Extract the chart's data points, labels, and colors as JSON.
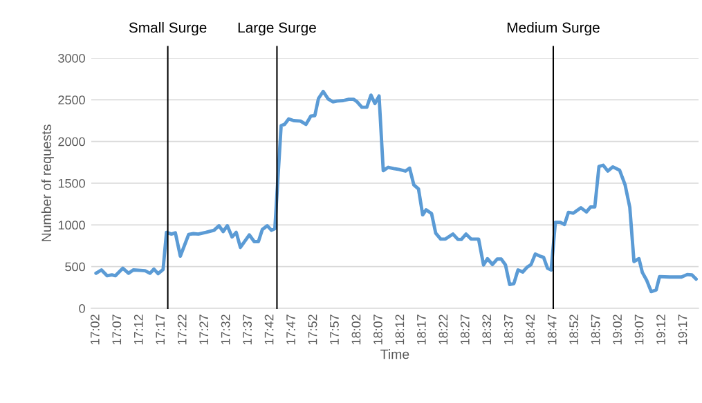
{
  "chart_data": {
    "type": "line",
    "xlabel": "Time",
    "ylabel": "Number of requests",
    "series": [
      {
        "color": "#5b9bd5",
        "x": [
          17.033,
          17.054,
          17.076,
          17.094,
          17.107,
          17.136,
          17.158,
          17.176,
          17.203,
          17.221,
          17.24,
          17.255,
          17.271,
          17.29,
          17.303,
          17.322,
          17.337,
          17.356,
          17.388,
          17.406,
          17.425,
          17.454,
          17.485,
          17.504,
          17.52,
          17.536,
          17.554,
          17.57,
          17.586,
          17.62,
          17.639,
          17.655,
          17.67,
          17.689,
          17.705,
          17.718,
          17.742,
          17.755,
          17.771,
          17.79,
          17.816,
          17.837,
          17.856,
          17.871,
          17.885,
          17.903,
          17.922,
          17.94,
          17.956,
          17.98,
          18.001,
          18.02,
          18.033,
          18.051,
          18.07,
          18.086,
          18.101,
          18.117,
          18.133,
          18.152,
          18.173,
          18.194,
          18.218,
          18.234,
          18.25,
          18.268,
          18.284,
          18.297,
          18.318,
          18.334,
          18.353,
          18.371,
          18.4,
          18.419,
          18.432,
          18.45,
          18.469,
          18.498,
          18.517,
          18.532,
          18.551,
          18.569,
          18.585,
          18.601,
          18.617,
          18.633,
          18.649,
          18.667,
          18.683,
          18.699,
          18.715,
          18.733,
          18.747,
          18.762,
          18.776,
          18.792,
          18.811,
          18.827,
          18.842,
          18.861,
          18.874,
          18.89,
          18.911,
          18.927,
          18.943,
          18.959,
          18.975,
          18.993,
          19.012,
          19.038,
          19.059,
          19.077,
          19.093,
          19.112,
          19.125,
          19.141,
          19.159,
          19.178,
          19.191,
          19.23,
          19.275,
          19.297,
          19.315,
          19.331
        ],
        "values": [
          420,
          460,
          390,
          400,
          390,
          480,
          420,
          460,
          455,
          450,
          420,
          470,
          415,
          465,
          910,
          890,
          905,
          625,
          885,
          895,
          890,
          910,
          935,
          990,
          920,
          990,
          855,
          910,
          730,
          880,
          800,
          800,
          945,
          990,
          935,
          955,
          2190,
          2205,
          2270,
          2250,
          2245,
          2205,
          2305,
          2310,
          2515,
          2600,
          2510,
          2475,
          2485,
          2490,
          2505,
          2505,
          2475,
          2410,
          2410,
          2555,
          2455,
          2545,
          1650,
          1690,
          1675,
          1665,
          1645,
          1680,
          1480,
          1430,
          1120,
          1180,
          1135,
          900,
          830,
          830,
          890,
          825,
          825,
          890,
          830,
          830,
          520,
          595,
          525,
          590,
          590,
          520,
          285,
          295,
          460,
          435,
          490,
          525,
          650,
          625,
          610,
          480,
          460,
          1030,
          1030,
          1005,
          1150,
          1140,
          1170,
          1205,
          1155,
          1215,
          1215,
          1700,
          1715,
          1645,
          1695,
          1655,
          1480,
          1210,
          560,
          595,
          430,
          340,
          200,
          220,
          380,
          375,
          375,
          405,
          400,
          350
        ]
      }
    ],
    "xlim": [
      17.015,
      19.34
    ],
    "xticks": [
      {
        "value": 17.0333,
        "label": "17:02"
      },
      {
        "value": 17.1167,
        "label": "17:07"
      },
      {
        "value": 17.2,
        "label": "17:12"
      },
      {
        "value": 17.2833,
        "label": "17:17"
      },
      {
        "value": 17.3667,
        "label": "17:22"
      },
      {
        "value": 17.45,
        "label": "17:27"
      },
      {
        "value": 17.5333,
        "label": "17:32"
      },
      {
        "value": 17.6167,
        "label": "17:37"
      },
      {
        "value": 17.7,
        "label": "17:42"
      },
      {
        "value": 17.7833,
        "label": "17:47"
      },
      {
        "value": 17.8667,
        "label": "17:52"
      },
      {
        "value": 17.95,
        "label": "17:57"
      },
      {
        "value": 18.0333,
        "label": "18:02"
      },
      {
        "value": 18.1167,
        "label": "18:07"
      },
      {
        "value": 18.2,
        "label": "18:12"
      },
      {
        "value": 18.2833,
        "label": "18:17"
      },
      {
        "value": 18.3667,
        "label": "18:22"
      },
      {
        "value": 18.45,
        "label": "18:27"
      },
      {
        "value": 18.5333,
        "label": "18:32"
      },
      {
        "value": 18.6167,
        "label": "18:37"
      },
      {
        "value": 18.7,
        "label": "18:42"
      },
      {
        "value": 18.7833,
        "label": "18:47"
      },
      {
        "value": 18.8667,
        "label": "18:52"
      },
      {
        "value": 18.95,
        "label": "18:57"
      },
      {
        "value": 19.0333,
        "label": "19:02"
      },
      {
        "value": 19.1167,
        "label": "19:07"
      },
      {
        "value": 19.2,
        "label": "19:12"
      },
      {
        "value": 19.2833,
        "label": "19:17"
      }
    ],
    "ylim": [
      0,
      3000
    ],
    "yticks": [
      0,
      500,
      1000,
      1500,
      2000,
      2500,
      3000
    ],
    "grid": "y",
    "ref_lines": [
      {
        "axis": "x",
        "value": 17.308,
        "label": "Small Surge",
        "color": "#000000"
      },
      {
        "axis": "x",
        "value": 17.726,
        "label": "Large Surge",
        "color": "#000000"
      },
      {
        "axis": "x",
        "value": 18.784,
        "label": "Medium Surge",
        "color": "#000000"
      }
    ]
  }
}
